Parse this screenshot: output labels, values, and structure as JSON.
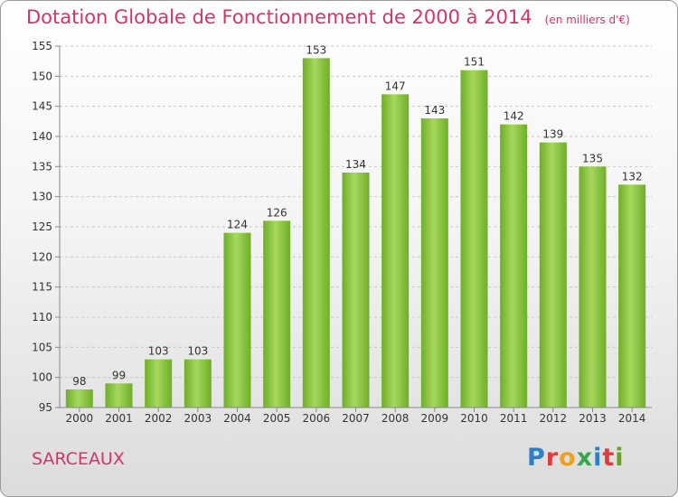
{
  "title": "Dotation Globale de Fonctionnement de 2000 à 2014",
  "unit": "(en milliers d'€)",
  "place": "SARCEAUX",
  "logo": {
    "letters": [
      "P",
      "r",
      "o",
      "x",
      "i",
      "t",
      "i"
    ],
    "colors": [
      "#2f7fc8",
      "#e23b3b",
      "#f0a020",
      "#3aa84a",
      "#2f7fc8",
      "#e23b3b",
      "#6a9f2a"
    ]
  },
  "colors": {
    "bar": "#7cbd2f",
    "bar_light": "#9fd455",
    "title": "#d6336c"
  },
  "chart_data": {
    "type": "bar",
    "title": "Dotation Globale de Fonctionnement de 2000 à 2014",
    "subtitle": "(en milliers d'€)",
    "categories": [
      "2000",
      "2001",
      "2002",
      "2003",
      "2004",
      "2005",
      "2006",
      "2007",
      "2008",
      "2009",
      "2010",
      "2011",
      "2012",
      "2013",
      "2014"
    ],
    "values": [
      98,
      99,
      103,
      103,
      124,
      126,
      153,
      134,
      147,
      143,
      151,
      142,
      139,
      135,
      132
    ],
    "ylim": [
      95,
      155
    ],
    "yticks": [
      95,
      100,
      105,
      110,
      115,
      120,
      125,
      130,
      135,
      140,
      145,
      150,
      155
    ],
    "grid": true,
    "data_labels": true
  }
}
